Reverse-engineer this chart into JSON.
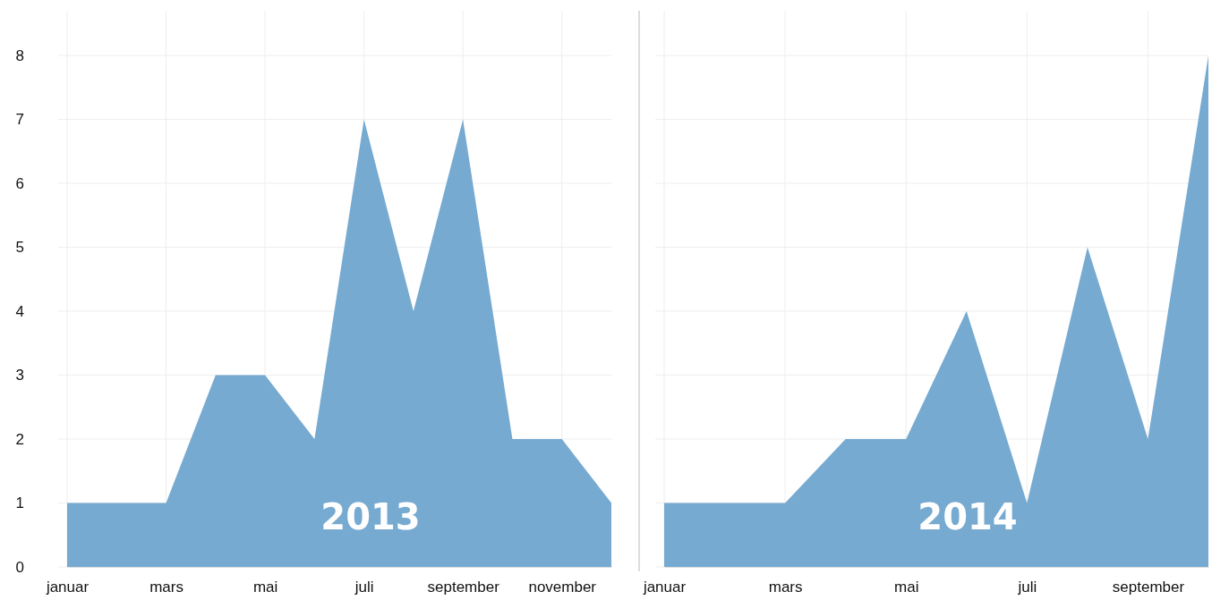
{
  "chart_data": [
    {
      "type": "area",
      "categories": [
        "januar",
        null,
        "mars",
        null,
        "mai",
        null,
        "juli",
        null,
        "september",
        null,
        "november",
        null
      ],
      "values": [
        1,
        1,
        1,
        3,
        3,
        2,
        7,
        4,
        7,
        2,
        2,
        1
      ],
      "color": "#76aad1",
      "ylim": [
        0,
        8.7
      ],
      "yticks": [
        0,
        1,
        2,
        3,
        4,
        5,
        6,
        7,
        8
      ],
      "grid": true,
      "annotations": [
        "2013"
      ]
    },
    {
      "type": "area",
      "categories": [
        "januar",
        null,
        "mars",
        null,
        "mai",
        null,
        "juli",
        null,
        "september",
        null
      ],
      "values": [
        1,
        1,
        1,
        2,
        2,
        4,
        1,
        5,
        2,
        8
      ],
      "color": "#76aad1",
      "ylim": [
        0,
        8.7
      ],
      "yticks": [
        0,
        1,
        2,
        3,
        4,
        5,
        6,
        7,
        8
      ],
      "grid": true,
      "tick_labels": "x",
      "annotations": [
        "2014"
      ]
    }
  ]
}
